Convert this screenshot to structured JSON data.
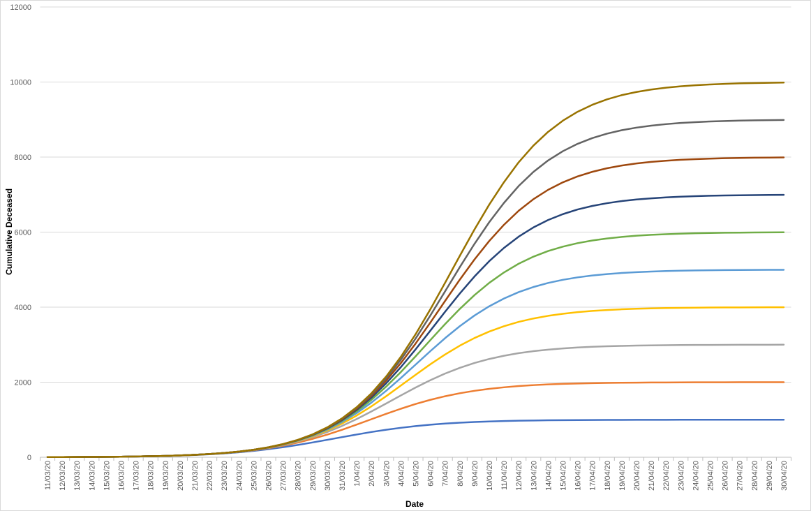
{
  "chart_data": {
    "type": "line",
    "y_label": "Cumulative Deceased",
    "x_label": "Date",
    "categories": [
      "11/03/20",
      "12/03/20",
      "13/03/20",
      "14/03/20",
      "15/03/20",
      "16/03/20",
      "17/03/20",
      "18/03/20",
      "19/03/20",
      "20/03/20",
      "21/03/20",
      "22/03/20",
      "23/03/20",
      "24/03/20",
      "25/03/20",
      "26/03/20",
      "27/03/20",
      "28/03/20",
      "29/03/20",
      "30/03/20",
      "31/03/20",
      "1/04/20",
      "2/04/20",
      "3/04/20",
      "4/04/20",
      "5/04/20",
      "6/04/20",
      "7/04/20",
      "8/04/20",
      "9/04/20",
      "10/04/20",
      "11/04/20",
      "12/04/20",
      "13/04/20",
      "14/04/20",
      "15/04/20",
      "16/04/20",
      "17/04/20",
      "18/04/20",
      "19/04/20",
      "20/04/20",
      "21/04/20",
      "22/04/20",
      "23/04/20",
      "24/04/20",
      "25/04/20",
      "26/04/20",
      "27/04/20",
      "28/04/20",
      "29/04/20",
      "30/04/20"
    ],
    "ylim": [
      0,
      12000
    ],
    "yticks": [
      0,
      2000,
      4000,
      6000,
      8000,
      10000,
      12000
    ],
    "grid": true,
    "series": [
      {
        "color": "#4472c4",
        "values": [
          4,
          5,
          6,
          9,
          11,
          15,
          20,
          27,
          35,
          46,
          61,
          79,
          103,
          133,
          170,
          215,
          267,
          327,
          394,
          464,
          536,
          606,
          673,
          733,
          785,
          830,
          867,
          897,
          921,
          939,
          954,
          965,
          974,
          980,
          985,
          989,
          991,
          994,
          995,
          996,
          997,
          998,
          998,
          999,
          999,
          999,
          1000,
          1000,
          1000,
          1000,
          1000
        ]
      },
      {
        "color": "#ed7d31",
        "values": [
          4,
          5,
          6,
          9,
          11,
          15,
          20,
          27,
          36,
          47,
          63,
          83,
          109,
          143,
          186,
          241,
          308,
          391,
          490,
          604,
          732,
          870,
          1014,
          1157,
          1293,
          1419,
          1530,
          1626,
          1706,
          1771,
          1823,
          1864,
          1897,
          1922,
          1941,
          1955,
          1966,
          1975,
          1981,
          1986,
          1989,
          1992,
          1994,
          1995,
          1997,
          1997,
          1998,
          1999,
          1999,
          1999,
          1999
        ]
      },
      {
        "color": "#a5a5a5",
        "values": [
          4,
          5,
          6,
          9,
          11,
          15,
          20,
          27,
          36,
          48,
          63,
          84,
          111,
          146,
          192,
          251,
          325,
          419,
          534,
          672,
          834,
          1018,
          1220,
          1433,
          1648,
          1858,
          2054,
          2230,
          2383,
          2512,
          2619,
          2705,
          2774,
          2827,
          2868,
          2900,
          2925,
          2943,
          2957,
          2968,
          2976,
          2982,
          2986,
          2990,
          2992,
          2994,
          2996,
          2997,
          2998,
          2998,
          2999
        ]
      },
      {
        "color": "#ffc000",
        "values": [
          4,
          5,
          6,
          9,
          11,
          15,
          20,
          27,
          36,
          48,
          64,
          84,
          112,
          148,
          195,
          256,
          334,
          434,
          558,
          712,
          896,
          1112,
          1358,
          1627,
          1911,
          2198,
          2478,
          2739,
          2974,
          3178,
          3350,
          3492,
          3608,
          3698,
          3769,
          3824,
          3867,
          3899,
          3924,
          3943,
          3957,
          3968,
          3976,
          3982,
          3986,
          3990,
          3992,
          3994,
          3996,
          3997,
          3998
        ]
      },
      {
        "color": "#5b9bd5",
        "values": [
          4,
          5,
          6,
          9,
          11,
          15,
          20,
          27,
          36,
          48,
          64,
          85,
          112,
          149,
          197,
          259,
          340,
          443,
          574,
          738,
          938,
          1178,
          1457,
          1771,
          2112,
          2470,
          2828,
          3174,
          3493,
          3778,
          4024,
          4230,
          4401,
          4537,
          4645,
          4729,
          4794,
          4844,
          4882,
          4911,
          4933,
          4950,
          4962,
          4972,
          4979,
          4984,
          4988,
          4991,
          4993,
          4995,
          4996
        ]
      },
      {
        "color": "#70ad47",
        "values": [
          4,
          5,
          6,
          9,
          11,
          15,
          20,
          27,
          36,
          48,
          64,
          85,
          113,
          150,
          198,
          261,
          344,
          450,
          586,
          757,
          968,
          1226,
          1531,
          1882,
          2272,
          2691,
          3122,
          3549,
          3953,
          4322,
          4648,
          4925,
          5158,
          5346,
          5496,
          5613,
          5706,
          5776,
          5831,
          5872,
          5904,
          5927,
          5945,
          5959,
          5969,
          5977,
          5983,
          5987,
          5990,
          5993,
          5995
        ]
      },
      {
        "color": "#264478",
        "values": [
          4,
          5,
          6,
          9,
          11,
          15,
          20,
          27,
          36,
          48,
          64,
          85,
          113,
          150,
          199,
          263,
          347,
          455,
          594,
          770,
          991,
          1263,
          1589,
          1971,
          2402,
          2876,
          3373,
          3877,
          4364,
          4818,
          5226,
          5579,
          5880,
          6125,
          6323,
          6479,
          6603,
          6698,
          6771,
          6827,
          6869,
          6901,
          6926,
          6945,
          6958,
          6969,
          6976,
          6982,
          6987,
          6990,
          6993
        ]
      },
      {
        "color": "#9e480e",
        "values": [
          4,
          5,
          6,
          9,
          11,
          15,
          20,
          27,
          36,
          48,
          64,
          85,
          113,
          151,
          200,
          264,
          349,
          459,
          600,
          781,
          1009,
          1292,
          1635,
          2042,
          2510,
          3031,
          3589,
          4165,
          4733,
          5272,
          5764,
          6196,
          6570,
          6878,
          7128,
          7327,
          7485,
          7607,
          7702,
          7775,
          7830,
          7872,
          7903,
          7928,
          7945,
          7959,
          7969,
          7977,
          7983,
          7987,
          7990
        ]
      },
      {
        "color": "#636363",
        "values": [
          4,
          5,
          6,
          9,
          11,
          15,
          20,
          27,
          36,
          48,
          64,
          85,
          114,
          151,
          200,
          265,
          350,
          462,
          605,
          790,
          1023,
          1316,
          1673,
          2102,
          2601,
          3164,
          3778,
          4421,
          5066,
          5688,
          6265,
          6779,
          7230,
          7604,
          7911,
          8157,
          8353,
          8506,
          8625,
          8716,
          8785,
          8838,
          8878,
          8909,
          8931,
          8948,
          8961,
          8971,
          8978,
          8984,
          8988
        ]
      },
      {
        "color": "#997300",
        "values": [
          4,
          5,
          6,
          9,
          11,
          15,
          20,
          27,
          36,
          48,
          64,
          86,
          114,
          151,
          201,
          266,
          352,
          464,
          609,
          797,
          1035,
          1335,
          1705,
          2152,
          2678,
          3280,
          3943,
          4649,
          5368,
          6072,
          6734,
          7331,
          7862,
          8306,
          8673,
          8970,
          9208,
          9394,
          9539,
          9651,
          9735,
          9800,
          9849,
          9887,
          9915,
          9936,
          9952,
          9964,
          9973,
          9980,
          9985
        ]
      }
    ]
  }
}
